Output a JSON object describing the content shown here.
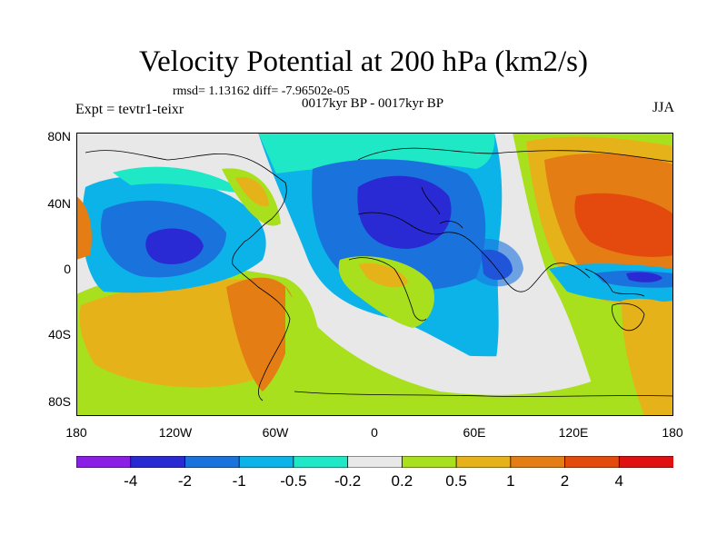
{
  "title": "Velocity Potential at 200 hPa (km2/s)",
  "stats": "rmsd= 1.13162 diff= -7.96502e-05",
  "period": "0017kyr BP - 0017kyr BP",
  "experiment": "Expt = tevtr1-teixr",
  "season": "JJA",
  "y_axis_labels": [
    "80N",
    "40N",
    "0",
    "40S",
    "80S"
  ],
  "x_axis_labels": [
    "180",
    "120W",
    "60W",
    "0",
    "60E",
    "120E",
    "180"
  ],
  "colorbar": {
    "tick_labels": [
      "-4",
      "-2",
      "-1",
      "-0.5",
      "-0.2",
      "0.2",
      "0.5",
      "1",
      "2",
      "4"
    ],
    "colors": [
      "#8a1ee6",
      "#2a2ad4",
      "#1a73dd",
      "#0cb3e8",
      "#1fe8c6",
      "#e8e8e8",
      "#a8e01e",
      "#e6b21a",
      "#e47d14",
      "#e44a0e",
      "#e01010"
    ]
  }
}
